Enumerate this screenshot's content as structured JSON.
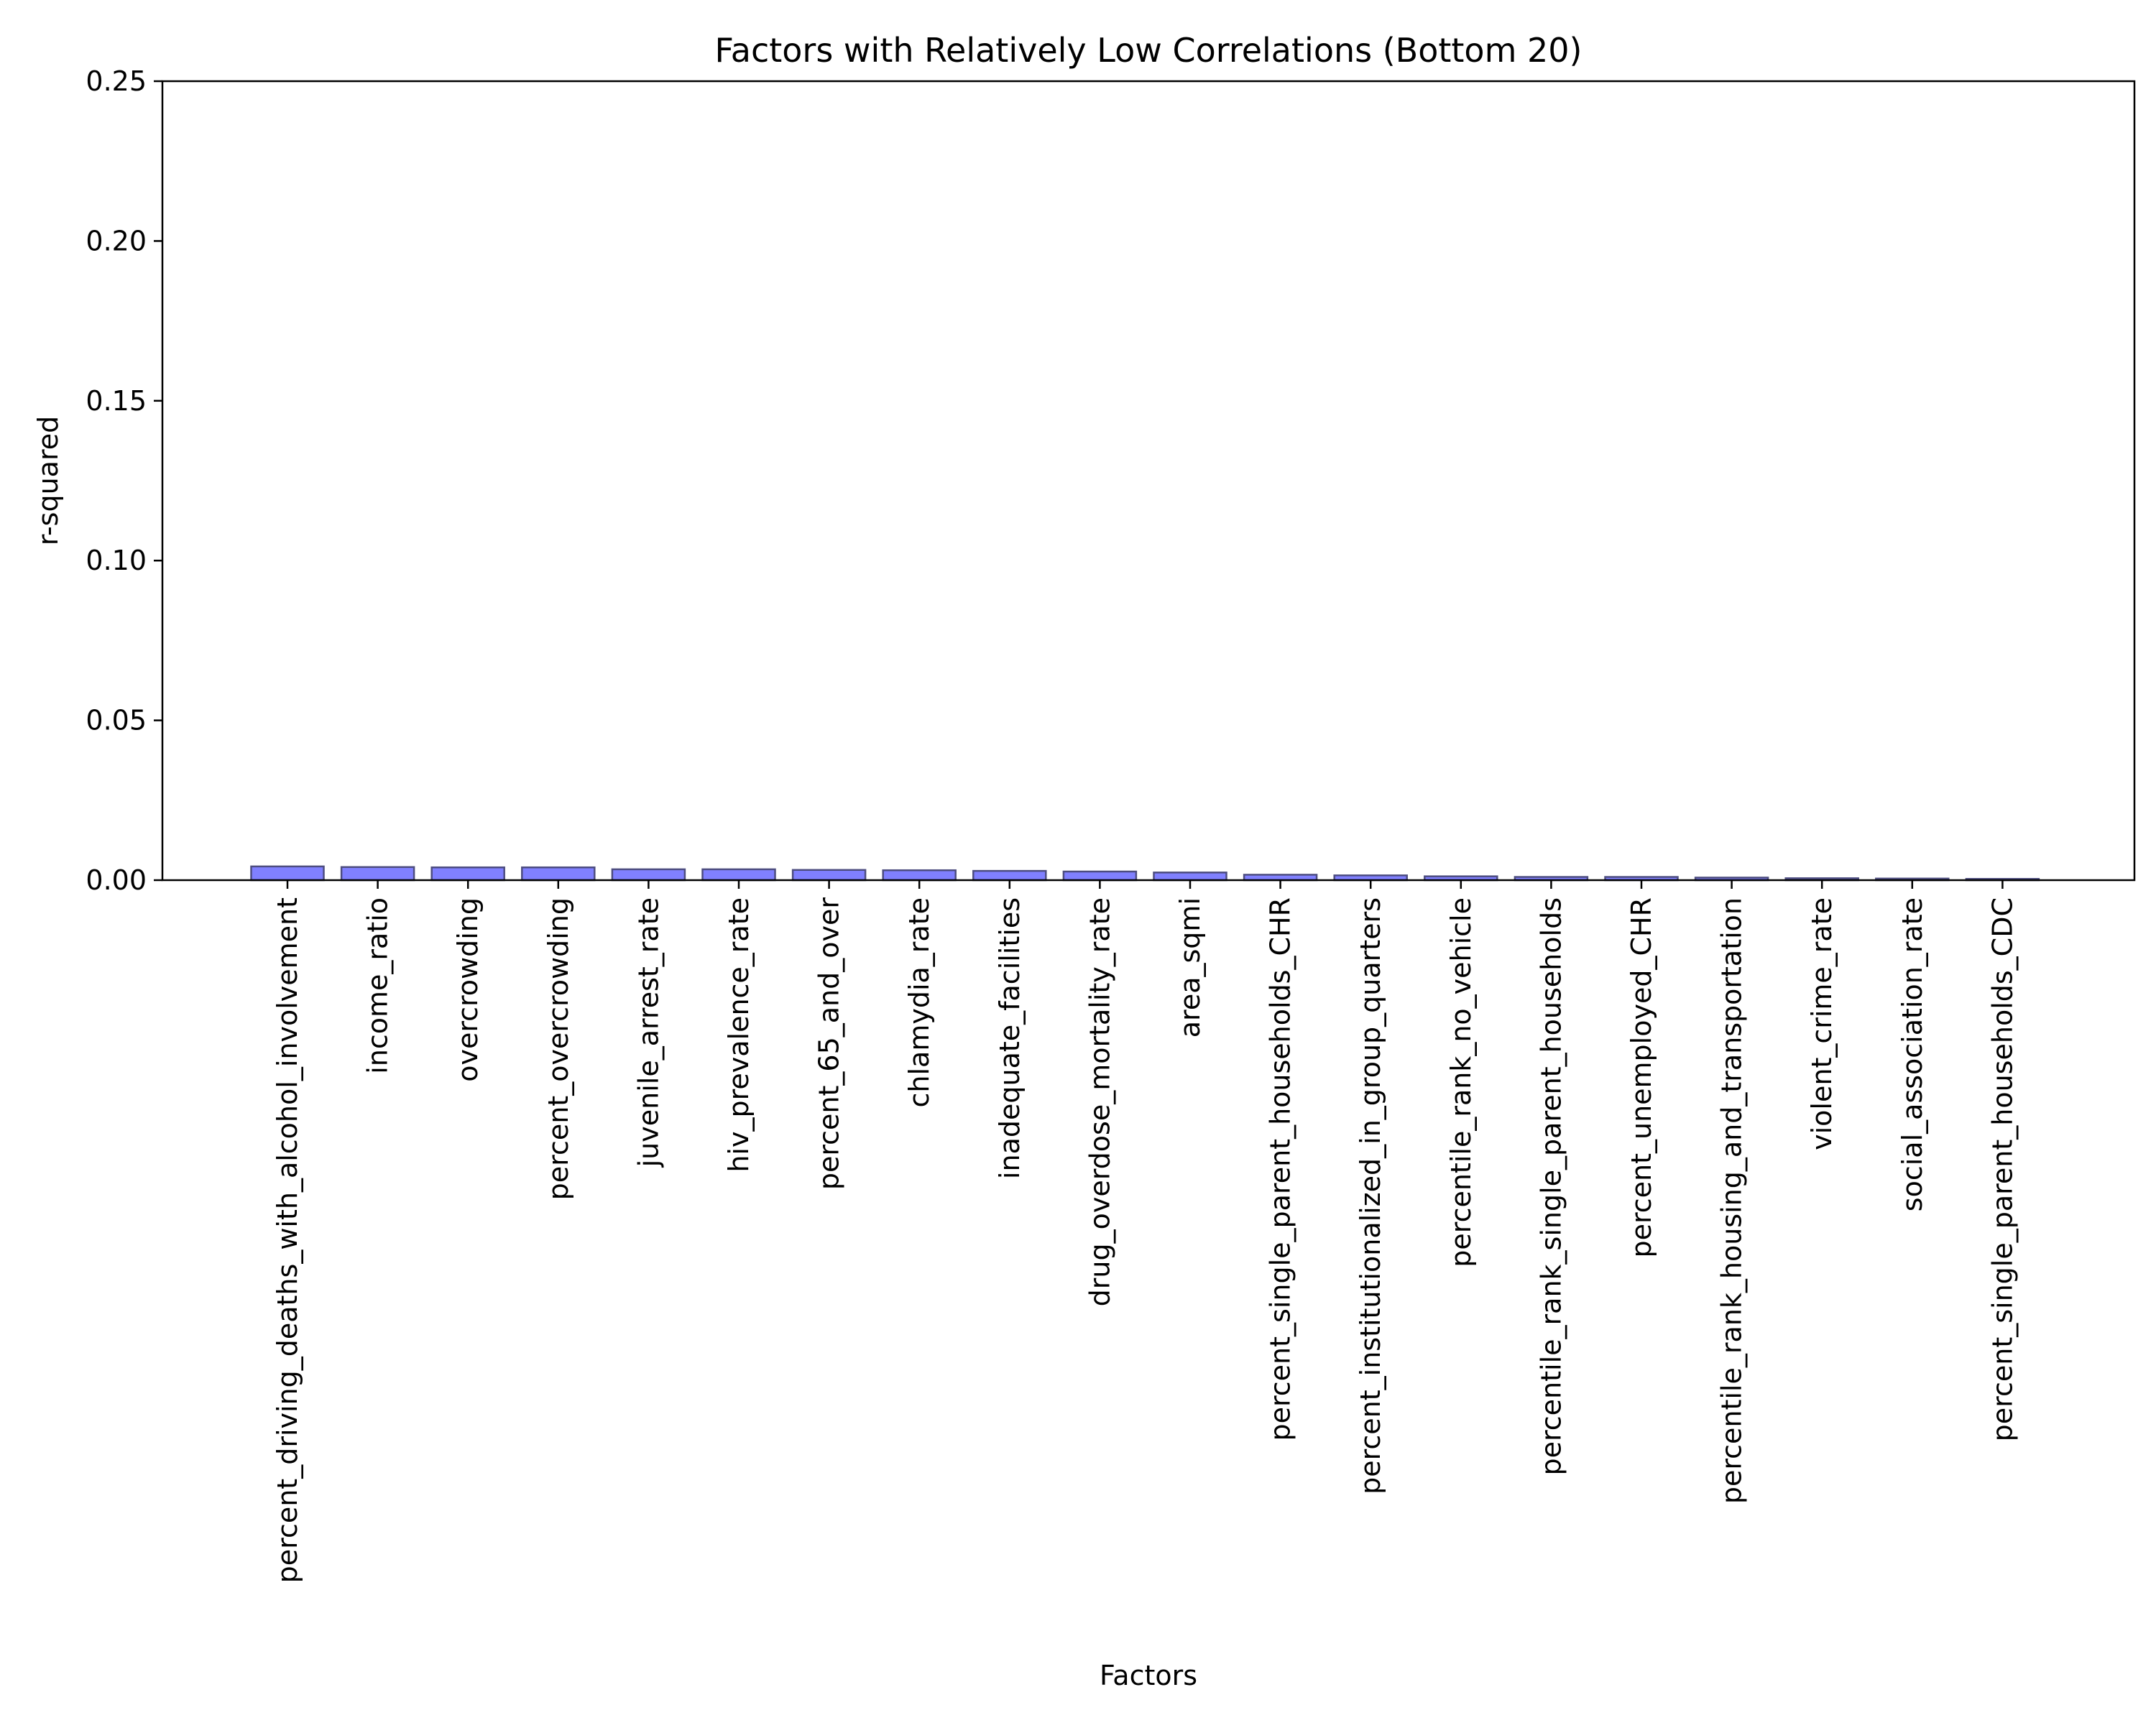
{
  "chart_data": {
    "type": "bar",
    "title": "Factors with Relatively Low Correlations (Bottom 20)",
    "xlabel": "Factors",
    "ylabel": "r-squared",
    "ylim": [
      0,
      0.25
    ],
    "yticks": [
      0.0,
      0.05,
      0.1,
      0.15,
      0.2,
      0.25
    ],
    "ytick_labels": [
      "0.00",
      "0.05",
      "0.10",
      "0.15",
      "0.20",
      "0.25"
    ],
    "grid": false,
    "bar_color": "#8080ff",
    "bar_edge_color": "#4d4d80",
    "categories": [
      "percent_driving_deaths_with_alcohol_involvement",
      "income_ratio",
      "overcrowding",
      "percent_overcrowding",
      "juvenile_arrest_rate",
      "hiv_prevalence_rate",
      "percent_65_and_over",
      "chlamydia_rate",
      "inadequate_facilities",
      "drug_overdose_mortality_rate",
      "area_sqmi",
      "percent_single_parent_households_CHR",
      "percent_institutionalized_in_group_quarters",
      "percentile_rank_no_vehicle",
      "percentile_rank_single_parent_households",
      "percent_unemployed_CHR",
      "percentile_rank_housing_and_transportation",
      "violent_crime_rate",
      "social_association_rate",
      "percent_single_parent_households_CDC"
    ],
    "values": [
      0.0043,
      0.0041,
      0.004,
      0.004,
      0.0034,
      0.0034,
      0.0032,
      0.0031,
      0.0029,
      0.0027,
      0.0024,
      0.0017,
      0.0015,
      0.0012,
      0.001,
      0.001,
      0.0008,
      0.0006,
      0.0005,
      0.0004
    ]
  }
}
